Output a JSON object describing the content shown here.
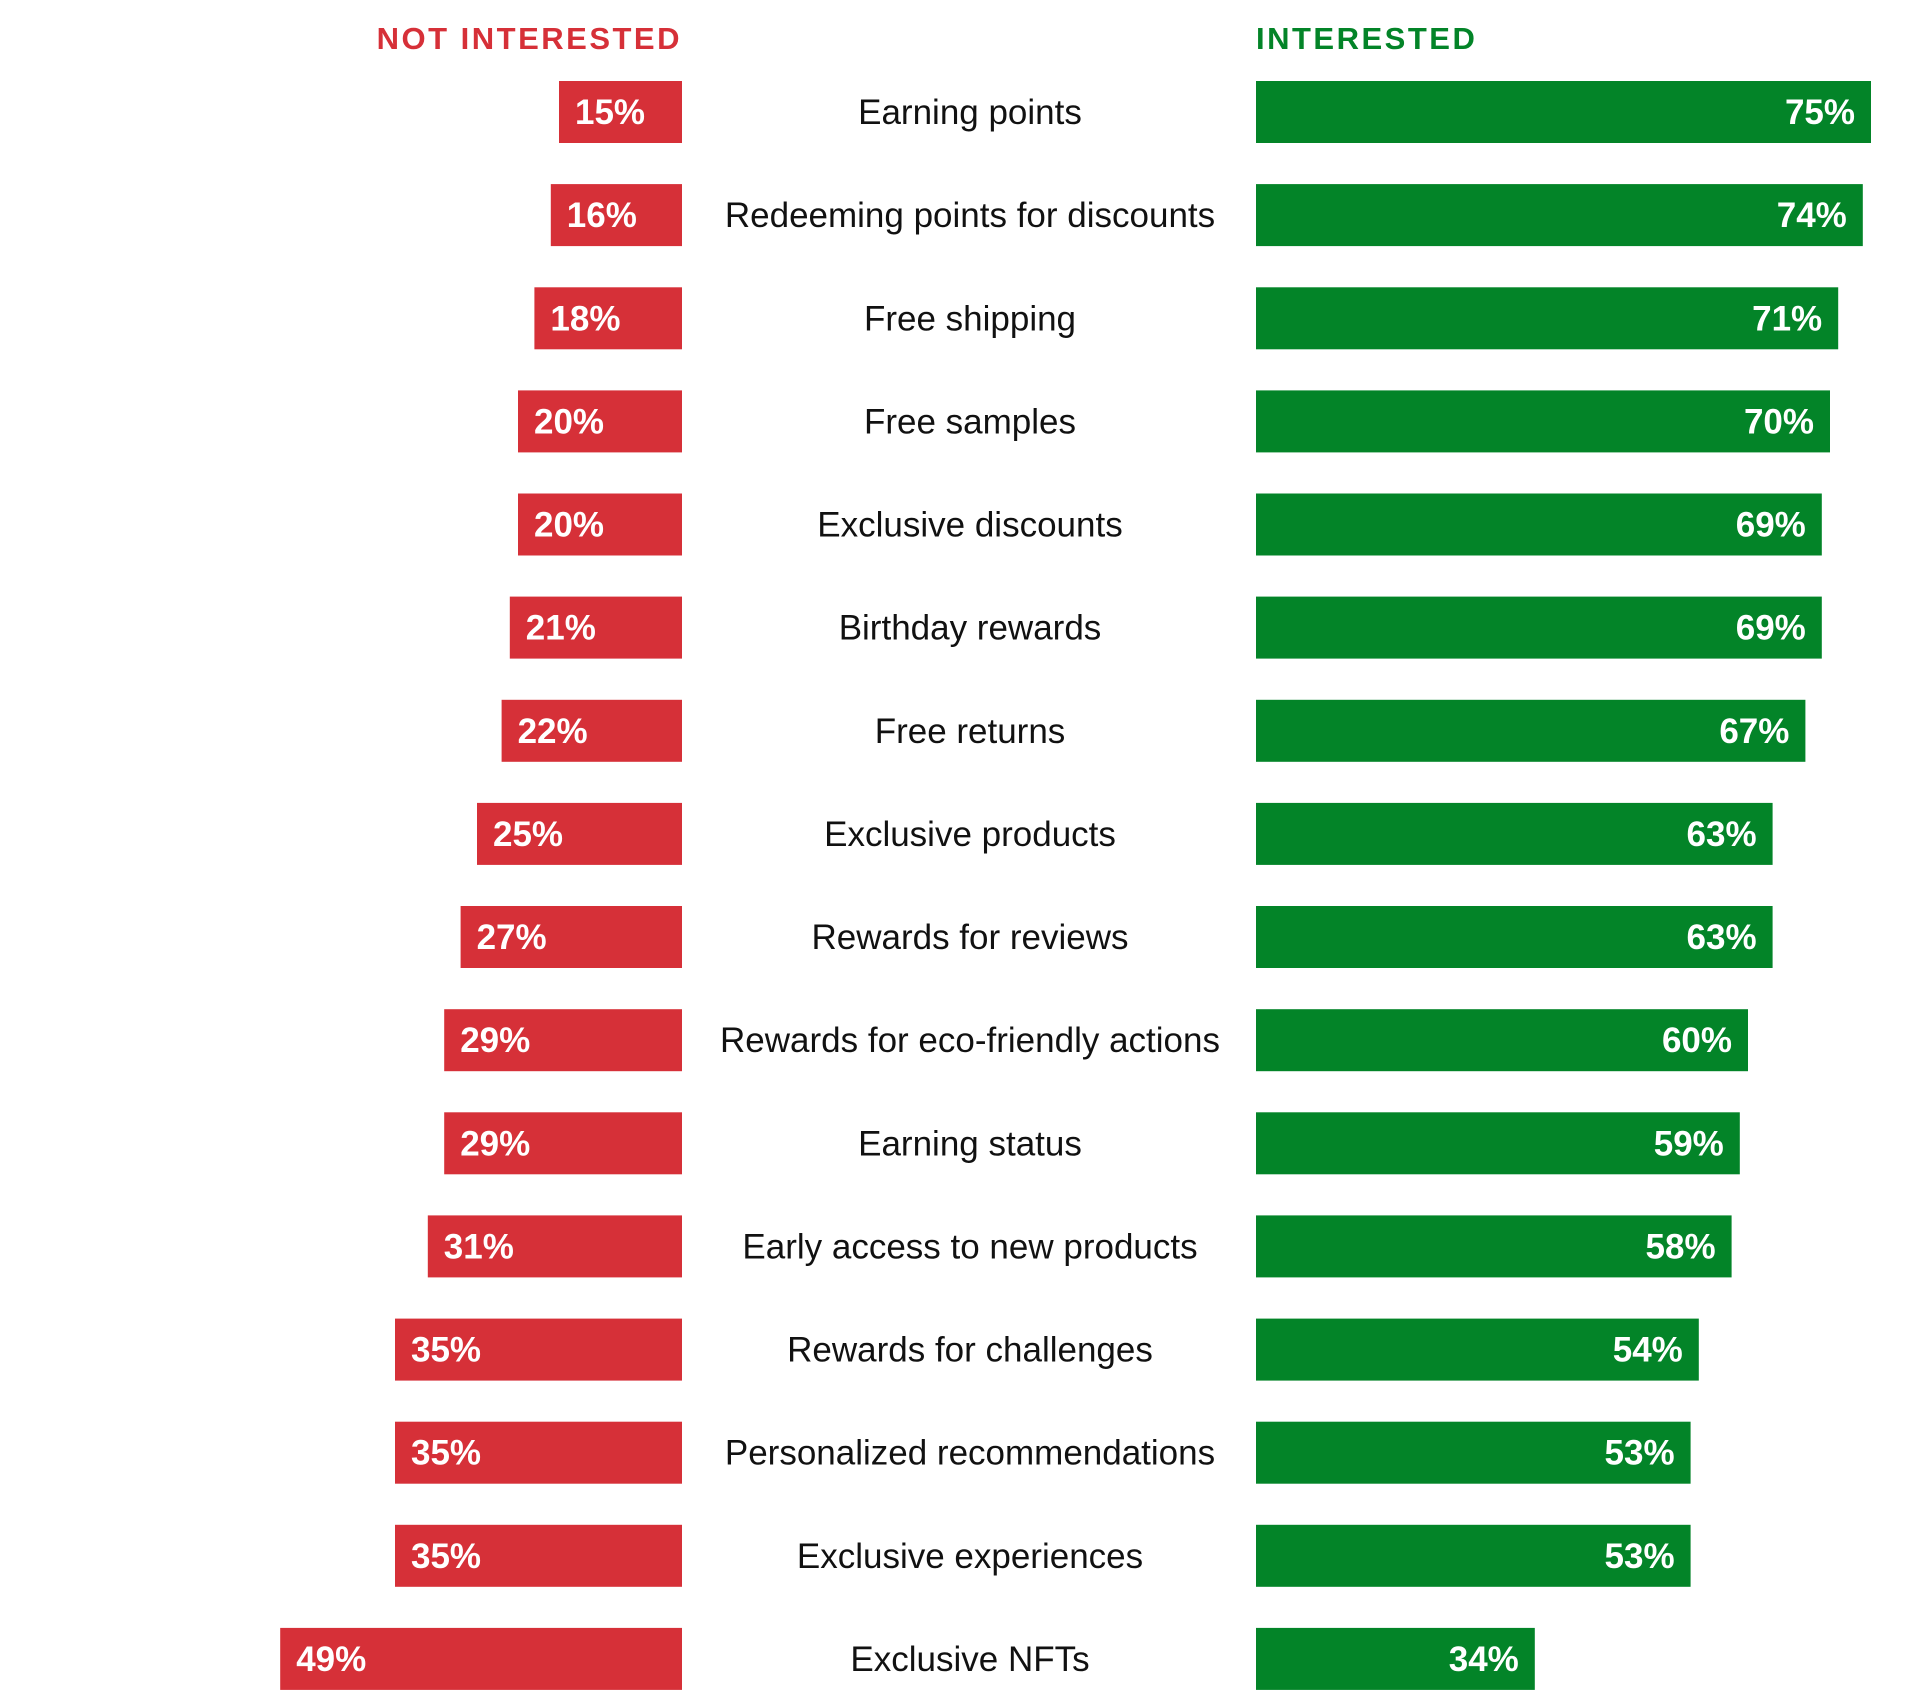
{
  "chart_data": {
    "type": "bar",
    "layout": "diverging-butterfly",
    "headers": {
      "left": "NOT INTERESTED",
      "right": "INTERESTED"
    },
    "categories": [
      "Earning points",
      "Redeeming points for discounts",
      "Free shipping",
      "Free samples",
      "Exclusive discounts",
      "Birthday rewards",
      "Free returns",
      "Exclusive products",
      "Rewards for reviews",
      "Rewards for eco-friendly actions",
      "Earning status",
      "Early access to new products",
      "Rewards for challenges",
      "Personalized recommendations",
      "Exclusive experiences",
      "Exclusive NFTs"
    ],
    "series": [
      {
        "name": "NOT INTERESTED",
        "color": "#d63038",
        "values": [
          15,
          16,
          18,
          20,
          20,
          21,
          22,
          25,
          27,
          29,
          29,
          31,
          35,
          35,
          35,
          49
        ],
        "labels": [
          "15%",
          "16%",
          "18%",
          "20%",
          "20%",
          "21%",
          "22%",
          "25%",
          "27%",
          "29%",
          "29%",
          "31%",
          "35%",
          "35%",
          "35%",
          "49%"
        ]
      },
      {
        "name": "INTERESTED",
        "color": "#038428",
        "values": [
          75,
          74,
          71,
          70,
          69,
          69,
          67,
          63,
          63,
          60,
          59,
          58,
          54,
          53,
          53,
          34
        ],
        "labels": [
          "75%",
          "74%",
          "71%",
          "70%",
          "69%",
          "69%",
          "67%",
          "63%",
          "63%",
          "60%",
          "59%",
          "58%",
          "54%",
          "53%",
          "53%",
          "34%"
        ]
      }
    ],
    "unit": "%",
    "grid": false,
    "legend": "none"
  }
}
